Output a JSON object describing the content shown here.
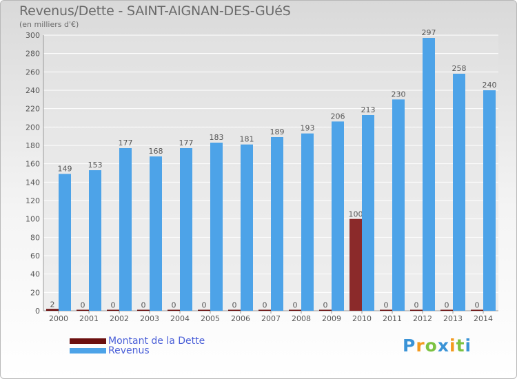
{
  "title": "Revenus/Dette - SAINT-AIGNAN-DES-GUéS",
  "subtitle": "(en milliers d'€)",
  "legend": [
    {
      "label": "Montant de la Dette",
      "color": "#6b1010"
    },
    {
      "label": "Revenus",
      "color": "#4da3e8"
    }
  ],
  "logo": {
    "text": "Proxiti",
    "letters": [
      {
        "ch": "P",
        "color": "#3a93d6"
      },
      {
        "ch": "r",
        "color": "#f39a1e"
      },
      {
        "ch": "o",
        "color": "#7cc242"
      },
      {
        "ch": "x",
        "color": "#3a93d6"
      },
      {
        "ch": "i",
        "color": "#f39a1e"
      },
      {
        "ch": "t",
        "color": "#7cc242"
      },
      {
        "ch": "i",
        "color": "#3a93d6"
      }
    ]
  },
  "colors": {
    "dette": "#6b1010",
    "dette_highlight": "#8b2a2a",
    "revenus": "#4da3e8",
    "grid": "#ffffff",
    "axis_text": "#555555",
    "value_label": "#555555"
  },
  "chart_data": {
    "type": "bar",
    "categories": [
      "2000",
      "2001",
      "2002",
      "2003",
      "2004",
      "2005",
      "2006",
      "2007",
      "2008",
      "2009",
      "2010",
      "2011",
      "2012",
      "2013",
      "2014"
    ],
    "series": [
      {
        "name": "Montant de la Dette",
        "values": [
          2,
          0,
          0,
          0,
          0,
          0,
          0,
          0,
          0,
          0,
          100,
          0,
          0,
          0,
          0
        ]
      },
      {
        "name": "Revenus",
        "values": [
          149,
          153,
          177,
          168,
          177,
          183,
          181,
          189,
          193,
          206,
          213,
          230,
          297,
          258,
          240
        ]
      }
    ],
    "ylim": [
      0,
      300
    ],
    "yticks": [
      0,
      20,
      40,
      60,
      80,
      100,
      120,
      140,
      160,
      180,
      200,
      220,
      240,
      260,
      280,
      300
    ],
    "grid": true,
    "legend_position": "bottom-left"
  }
}
